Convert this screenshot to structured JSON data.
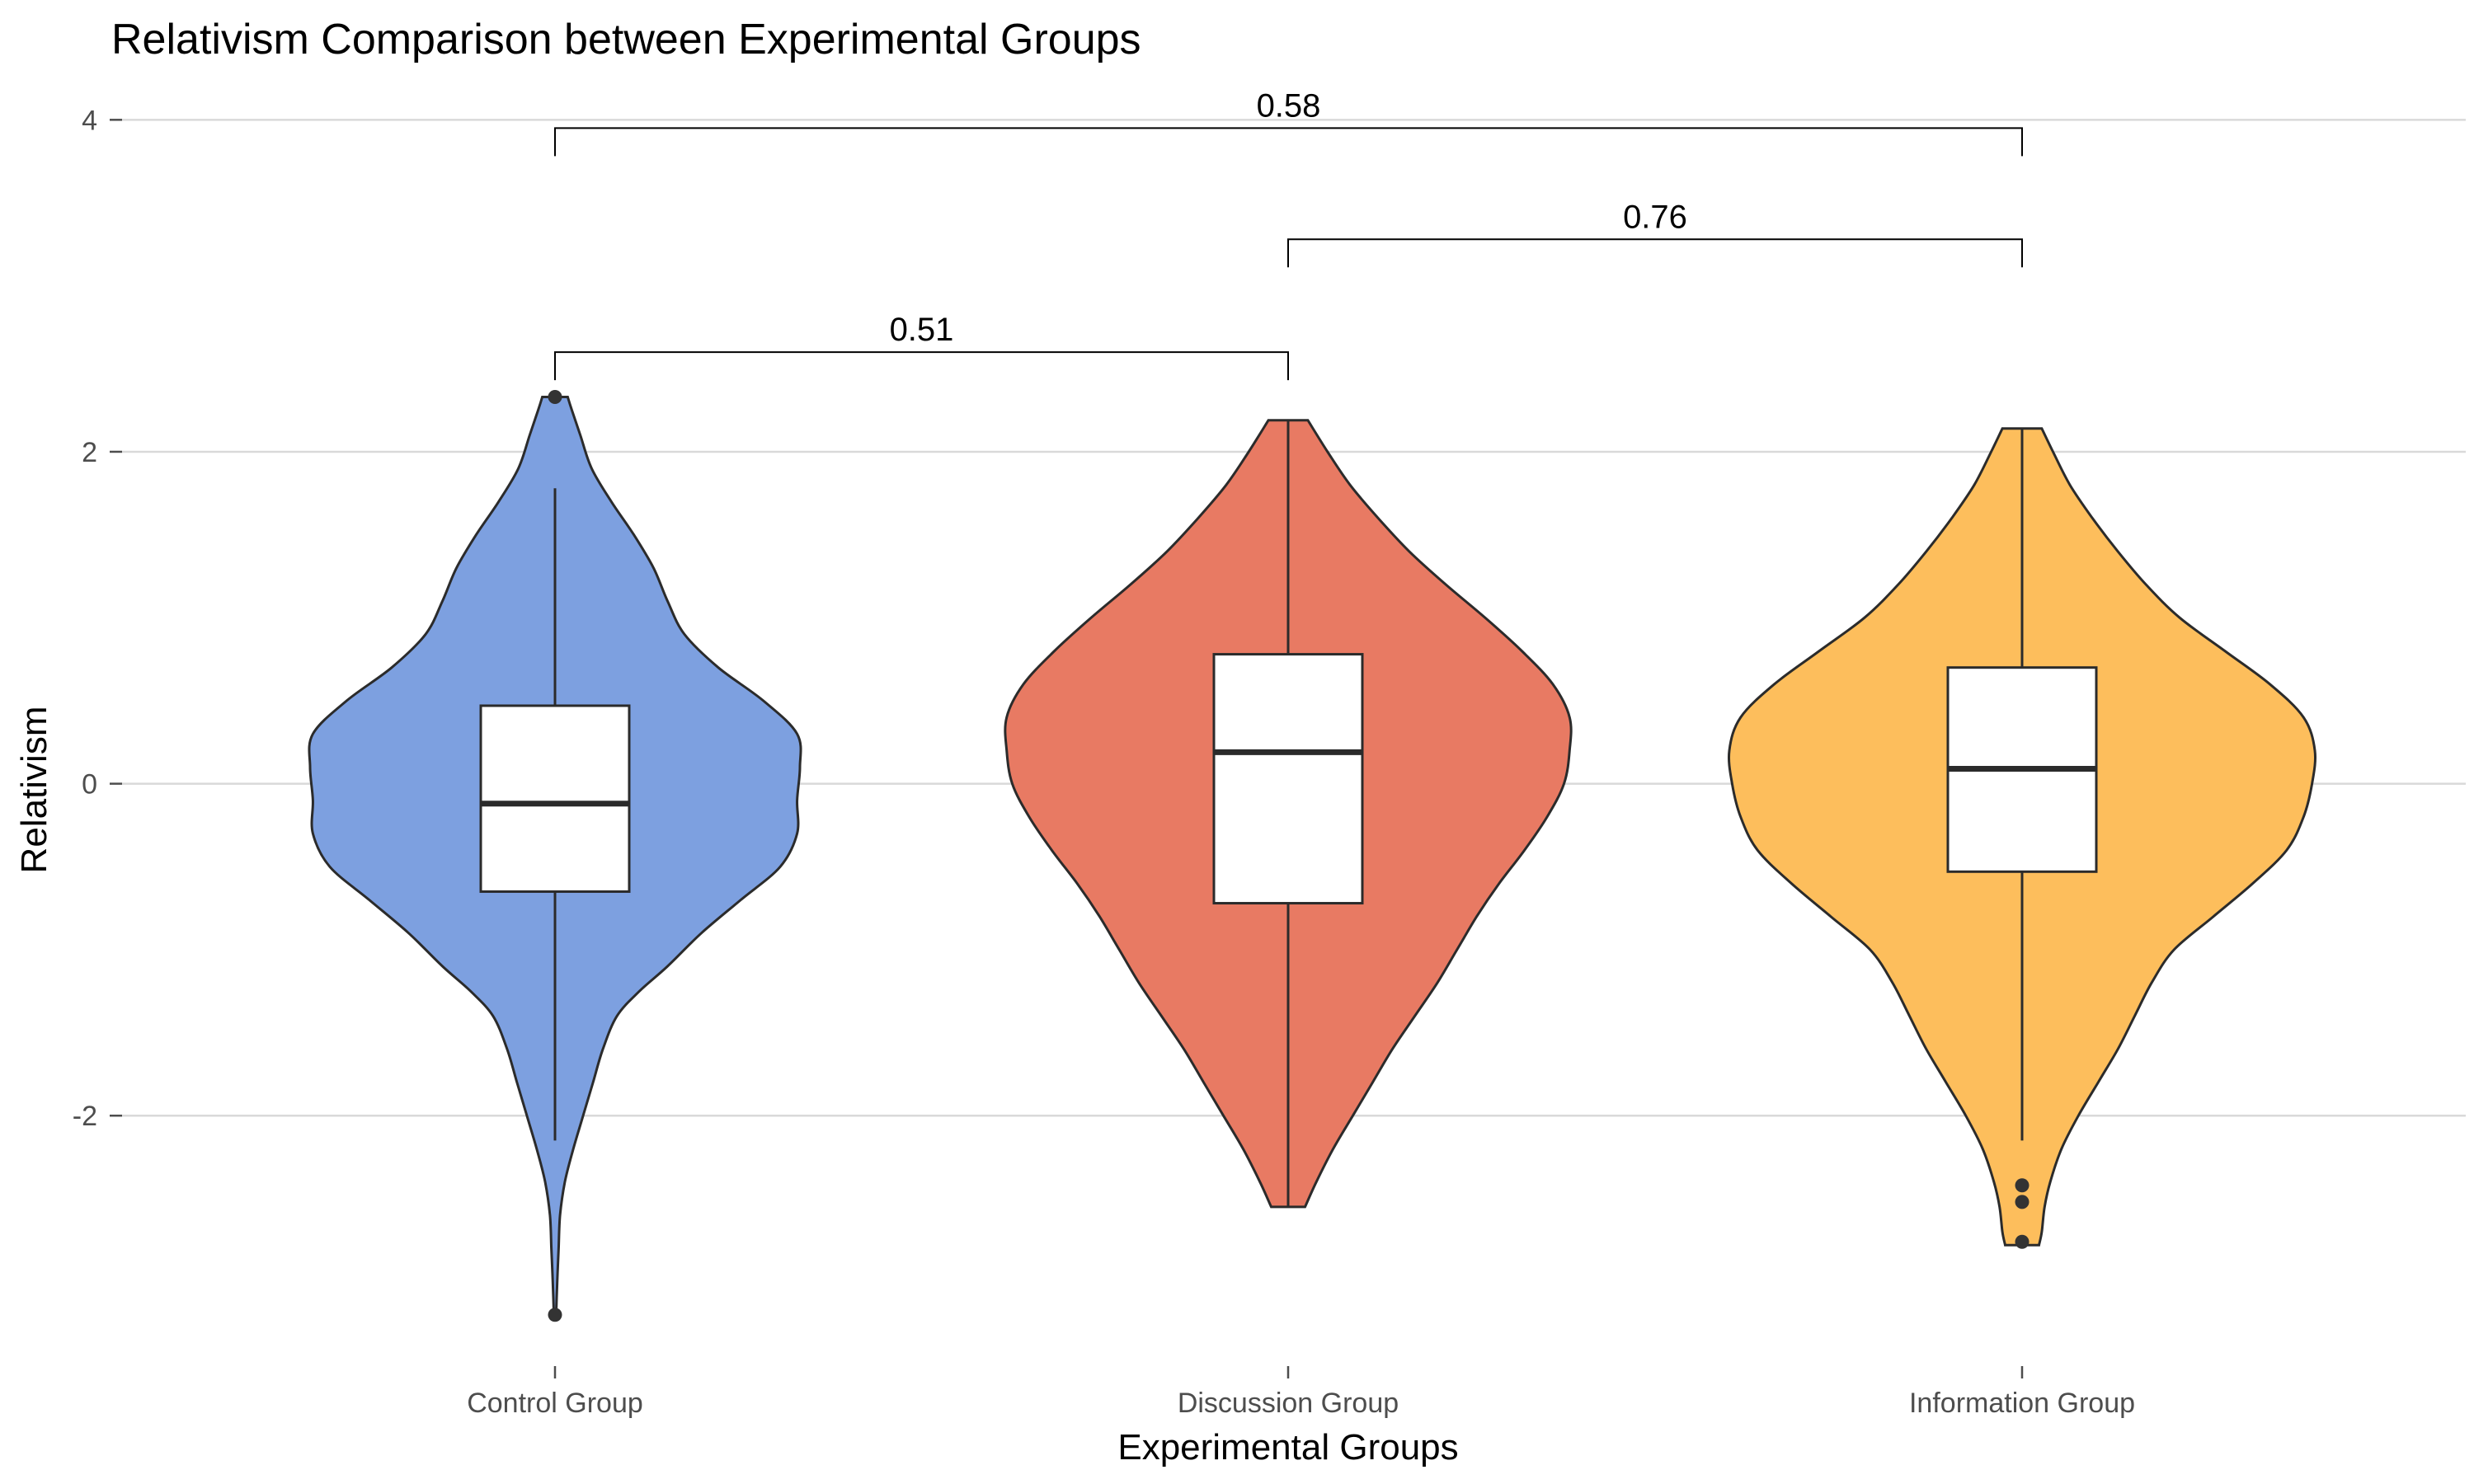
{
  "chart_data": {
    "type": "violin",
    "title": "Relativism Comparison between Experimental Groups",
    "xlabel": "Experimental Groups",
    "ylabel": "Relativism",
    "ylim": [
      -3.35,
      4.25
    ],
    "yticks": [
      -2,
      0,
      2,
      4
    ],
    "ytick_labels": [
      "-2",
      "0",
      "2",
      "4"
    ],
    "grid": "horizontal",
    "legend": "none",
    "categories": [
      "Control Group",
      "Discussion Group",
      "Information Group"
    ],
    "series": [
      {
        "category": "Control Group",
        "color": "#7da0e0",
        "box": {
          "q1": -0.65,
          "median": -0.12,
          "q3": 0.47,
          "whisker_low": -2.15,
          "whisker_high": 1.78
        },
        "outliers": [
          2.33,
          -3.2
        ],
        "density": [
          [
            -3.2,
            0.004
          ],
          [
            -3.1,
            0.006
          ],
          [
            -2.95,
            0.009
          ],
          [
            -2.8,
            0.013
          ],
          [
            -2.6,
            0.018
          ],
          [
            -2.4,
            0.035
          ],
          [
            -2.2,
            0.065
          ],
          [
            -2.0,
            0.1
          ],
          [
            -1.8,
            0.135
          ],
          [
            -1.6,
            0.17
          ],
          [
            -1.4,
            0.22
          ],
          [
            -1.25,
            0.3
          ],
          [
            -1.1,
            0.4
          ],
          [
            -0.9,
            0.52
          ],
          [
            -0.7,
            0.66
          ],
          [
            -0.5,
            0.8
          ],
          [
            -0.3,
            0.86
          ],
          [
            -0.1,
            0.86
          ],
          [
            0.1,
            0.87
          ],
          [
            0.3,
            0.86
          ],
          [
            0.5,
            0.74
          ],
          [
            0.7,
            0.58
          ],
          [
            0.9,
            0.46
          ],
          [
            1.1,
            0.4
          ],
          [
            1.3,
            0.35
          ],
          [
            1.5,
            0.28
          ],
          [
            1.7,
            0.2
          ],
          [
            1.9,
            0.13
          ],
          [
            2.1,
            0.09
          ],
          [
            2.25,
            0.06
          ],
          [
            2.33,
            0.045
          ]
        ]
      },
      {
        "category": "Discussion Group",
        "color": "#e87a63",
        "box": {
          "q1": -0.72,
          "median": 0.19,
          "q3": 0.78,
          "whisker_low": -2.55,
          "whisker_high": 2.19
        },
        "outliers": [],
        "density": [
          [
            -2.55,
            0.06
          ],
          [
            -2.4,
            0.1
          ],
          [
            -2.2,
            0.16
          ],
          [
            -2.0,
            0.23
          ],
          [
            -1.8,
            0.3
          ],
          [
            -1.6,
            0.37
          ],
          [
            -1.4,
            0.45
          ],
          [
            -1.2,
            0.53
          ],
          [
            -1.0,
            0.6
          ],
          [
            -0.8,
            0.67
          ],
          [
            -0.6,
            0.75
          ],
          [
            -0.4,
            0.84
          ],
          [
            -0.2,
            0.92
          ],
          [
            0.0,
            0.98
          ],
          [
            0.2,
            1.0
          ],
          [
            0.4,
            1.0
          ],
          [
            0.6,
            0.94
          ],
          [
            0.8,
            0.83
          ],
          [
            1.0,
            0.7
          ],
          [
            1.2,
            0.56
          ],
          [
            1.4,
            0.43
          ],
          [
            1.6,
            0.32
          ],
          [
            1.8,
            0.22
          ],
          [
            2.0,
            0.14
          ],
          [
            2.19,
            0.07
          ]
        ]
      },
      {
        "category": "Information Group",
        "color": "#fdbe5c",
        "box": {
          "q1": -0.53,
          "median": 0.09,
          "q3": 0.7,
          "whisker_low": -2.15,
          "whisker_high": 2.14
        },
        "outliers": [
          -2.42,
          -2.52,
          -2.76
        ],
        "density": [
          [
            -2.78,
            0.06
          ],
          [
            -2.7,
            0.07
          ],
          [
            -2.55,
            0.08
          ],
          [
            -2.4,
            0.1
          ],
          [
            -2.2,
            0.14
          ],
          [
            -2.0,
            0.2
          ],
          [
            -1.8,
            0.27
          ],
          [
            -1.6,
            0.34
          ],
          [
            -1.4,
            0.4
          ],
          [
            -1.2,
            0.46
          ],
          [
            -1.0,
            0.54
          ],
          [
            -0.8,
            0.68
          ],
          [
            -0.6,
            0.82
          ],
          [
            -0.4,
            0.94
          ],
          [
            -0.2,
            1.0
          ],
          [
            0.0,
            1.03
          ],
          [
            0.2,
            1.04
          ],
          [
            0.4,
            1.0
          ],
          [
            0.6,
            0.88
          ],
          [
            0.8,
            0.72
          ],
          [
            1.0,
            0.56
          ],
          [
            1.2,
            0.44
          ],
          [
            1.4,
            0.34
          ],
          [
            1.6,
            0.25
          ],
          [
            1.8,
            0.17
          ],
          [
            2.0,
            0.11
          ],
          [
            2.14,
            0.07
          ]
        ]
      }
    ],
    "comparisons": [
      {
        "groups": [
          "Control Group",
          "Discussion Group"
        ],
        "label": "0.51",
        "y": 2.6
      },
      {
        "groups": [
          "Discussion Group",
          "Information Group"
        ],
        "label": "0.76",
        "y": 3.28
      },
      {
        "groups": [
          "Control Group",
          "Information Group"
        ],
        "label": "0.58",
        "y": 3.95
      }
    ]
  }
}
